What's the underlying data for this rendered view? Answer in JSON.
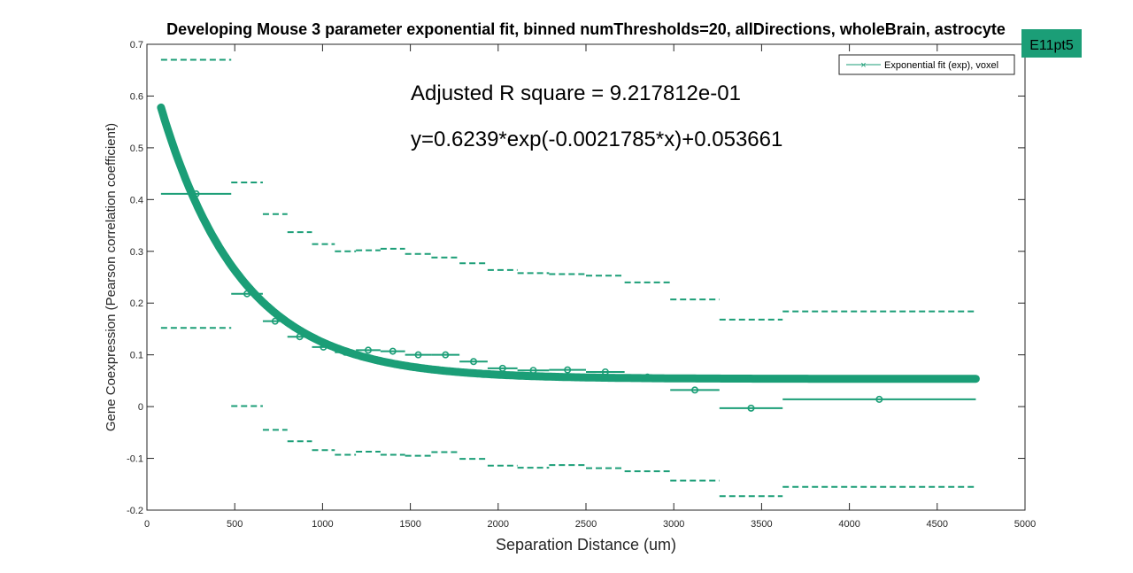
{
  "chart_data": {
    "type": "scatter",
    "title": "Developing Mouse 3 parameter exponential fit, binned numThresholds=20, allDirections, wholeBrain, astrocyte",
    "xlabel": "Separation Distance (um)",
    "ylabel": "Gene Coexpression (Pearson correlation coefficient)",
    "xlim": [
      0,
      5000
    ],
    "ylim": [
      -0.2,
      0.7
    ],
    "xticks": [
      0,
      500,
      1000,
      1500,
      2000,
      2500,
      3000,
      3500,
      4000,
      4500,
      5000
    ],
    "yticks": [
      -0.2,
      -0.1,
      0,
      0.1,
      0.2,
      0.3,
      0.4,
      0.5,
      0.6,
      0.7
    ],
    "grid": false,
    "legend_position": "top-right",
    "legend": [
      "Exponential fit (exp), voxel"
    ],
    "badge": "E11pt5",
    "annotations": [
      "Adjusted R square = 9.217812e-01",
      "y=0.6239*exp(-0.0021785*x)+0.053661"
    ],
    "color": "#1b9e77",
    "fit": {
      "a": 0.6239,
      "b": -0.0021785,
      "c": 0.053661,
      "x_range": [
        80,
        4720
      ]
    },
    "bins": [
      {
        "x_start": 80,
        "x_end": 480,
        "mean": 0.411,
        "upper": 0.67,
        "lower": 0.152
      },
      {
        "x_start": 480,
        "x_end": 660,
        "mean": 0.218,
        "upper": 0.433,
        "lower": 0.001
      },
      {
        "x_start": 660,
        "x_end": 800,
        "mean": 0.165,
        "upper": 0.372,
        "lower": -0.045
      },
      {
        "x_start": 800,
        "x_end": 940,
        "mean": 0.135,
        "upper": 0.337,
        "lower": -0.067
      },
      {
        "x_start": 940,
        "x_end": 1070,
        "mean": 0.115,
        "upper": 0.314,
        "lower": -0.084
      },
      {
        "x_start": 1070,
        "x_end": 1190,
        "mean": 0.105,
        "upper": 0.3,
        "lower": -0.093
      },
      {
        "x_start": 1190,
        "x_end": 1330,
        "mean": 0.109,
        "upper": 0.302,
        "lower": -0.087
      },
      {
        "x_start": 1330,
        "x_end": 1470,
        "mean": 0.107,
        "upper": 0.305,
        "lower": -0.093
      },
      {
        "x_start": 1470,
        "x_end": 1620,
        "mean": 0.1,
        "upper": 0.295,
        "lower": -0.095
      },
      {
        "x_start": 1620,
        "x_end": 1780,
        "mean": 0.1,
        "upper": 0.288,
        "lower": -0.088
      },
      {
        "x_start": 1780,
        "x_end": 1940,
        "mean": 0.087,
        "upper": 0.277,
        "lower": -0.101
      },
      {
        "x_start": 1940,
        "x_end": 2110,
        "mean": 0.074,
        "upper": 0.264,
        "lower": -0.114
      },
      {
        "x_start": 2110,
        "x_end": 2290,
        "mean": 0.07,
        "upper": 0.258,
        "lower": -0.118
      },
      {
        "x_start": 2290,
        "x_end": 2500,
        "mean": 0.071,
        "upper": 0.256,
        "lower": -0.113
      },
      {
        "x_start": 2500,
        "x_end": 2720,
        "mean": 0.067,
        "upper": 0.253,
        "lower": -0.119
      },
      {
        "x_start": 2720,
        "x_end": 2980,
        "mean": 0.057,
        "upper": 0.24,
        "lower": -0.125
      },
      {
        "x_start": 2980,
        "x_end": 3260,
        "mean": 0.032,
        "upper": 0.207,
        "lower": -0.143
      },
      {
        "x_start": 3260,
        "x_end": 3620,
        "mean": -0.003,
        "upper": 0.168,
        "lower": -0.173
      },
      {
        "x_start": 3620,
        "x_end": 4720,
        "mean": 0.014,
        "upper": 0.184,
        "lower": -0.155
      }
    ]
  }
}
